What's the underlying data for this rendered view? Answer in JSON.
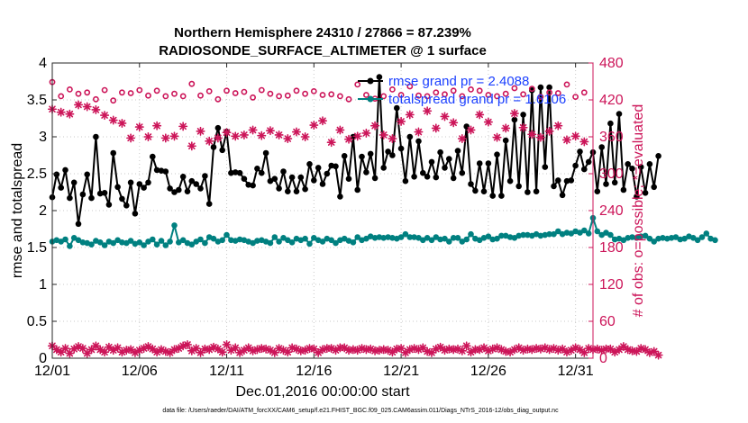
{
  "chart_data": {
    "type": "line",
    "title": "Northern Hemisphere 24310 / 27866 = 87.239%",
    "subtitle": "RADIOSONDE_SURFACE_ALTIMETER @ 1 surface",
    "xlabel": "Dec.01,2016 00:00:00 start",
    "ylabel": "rmse and totalspread",
    "ylabel_right": "# of obs: o=possible; *=evaluated",
    "footnote": "data file: /Users/raeder/DAI/ATM_forcXX/CAM6_setup/f.e21.FHIST_BGC.f09_025.CAM6assim.011/Diags_NTrS_2016-12/obs_diag_output.nc",
    "xlim": [
      0,
      31
    ],
    "ylim": [
      0,
      4
    ],
    "ylim_right": [
      0,
      480
    ],
    "xticks": [
      0,
      5,
      10,
      15,
      20,
      25,
      30
    ],
    "xtick_labels": [
      "12/01",
      "12/06",
      "12/11",
      "12/16",
      "12/21",
      "12/26",
      "12/31"
    ],
    "yticks": [
      0,
      0.5,
      1,
      1.5,
      2,
      2.5,
      3,
      3.5,
      4
    ],
    "ytick_labels": [
      "0",
      "0.5",
      "1",
      "1.5",
      "2",
      "2.5",
      "3",
      "3.5",
      "4"
    ],
    "yticks_right": [
      0,
      60,
      120,
      180,
      240,
      300,
      360,
      420,
      480
    ],
    "ytick_labels_right": [
      "0",
      "60",
      "120",
      "180",
      "240",
      "300",
      "360",
      "420",
      "480"
    ],
    "grid": true,
    "legend_position": "top-right",
    "colors": {
      "rmse": "#000000",
      "spread": "#008080",
      "obs": "#cc1559",
      "legend_text": "#1a3fff"
    },
    "series": [
      {
        "name": "rmse",
        "legend": "rmse grand pr = 2.4088",
        "axis": "left",
        "marker": "filled-circle",
        "t0": 0,
        "dt": 0.25,
        "values": [
          2.18,
          2.49,
          2.31,
          2.55,
          2.17,
          2.38,
          1.82,
          2.22,
          2.49,
          2.17,
          3.0,
          2.23,
          2.24,
          2.08,
          2.78,
          2.32,
          2.16,
          2.07,
          2.38,
          1.96,
          2.36,
          2.31,
          2.38,
          2.73,
          2.55,
          2.54,
          2.53,
          2.3,
          2.25,
          2.28,
          2.46,
          2.26,
          2.4,
          2.36,
          2.3,
          2.47,
          2.09,
          2.86,
          3.12,
          2.82,
          3.07,
          2.51,
          2.52,
          2.51,
          2.43,
          2.35,
          2.34,
          2.57,
          2.51,
          2.78,
          2.4,
          2.43,
          2.3,
          2.53,
          2.26,
          2.45,
          2.26,
          2.45,
          2.29,
          2.63,
          2.41,
          2.58,
          2.36,
          2.5,
          2.61,
          2.6,
          2.19,
          2.74,
          2.43,
          3.0,
          2.28,
          2.73,
          2.52,
          2.77,
          2.44,
          3.81,
          2.58,
          2.8,
          2.75,
          3.39,
          2.84,
          2.4,
          3.0,
          2.46,
          2.94,
          2.51,
          2.46,
          2.66,
          2.45,
          2.79,
          2.58,
          2.7,
          2.44,
          2.81,
          2.51,
          3.14,
          2.36,
          2.27,
          2.64,
          2.26,
          2.64,
          2.2,
          2.76,
          2.2,
          2.95,
          2.4,
          3.23,
          2.33,
          3.3,
          2.25,
          3.63,
          2.26,
          3.67,
          2.59,
          3.67,
          2.33,
          2.41,
          2.21,
          2.4,
          2.41,
          2.61,
          2.8,
          2.56,
          2.66,
          2.79,
          2.26,
          2.86,
          2.36,
          3.18,
          2.38,
          3.31,
          2.28,
          2.63,
          2.57,
          2.19,
          2.59,
          2.24,
          2.63,
          2.32,
          2.74
        ]
      },
      {
        "name": "totalspread",
        "legend": "totalspread grand pr = 1.6106",
        "axis": "left",
        "marker": "filled-circle",
        "t0": 0,
        "dt": 0.25,
        "values": [
          1.58,
          1.6,
          1.58,
          1.61,
          1.52,
          1.63,
          1.6,
          1.57,
          1.56,
          1.54,
          1.59,
          1.57,
          1.53,
          1.58,
          1.56,
          1.6,
          1.57,
          1.56,
          1.59,
          1.55,
          1.57,
          1.53,
          1.58,
          1.61,
          1.54,
          1.59,
          1.53,
          1.58,
          1.8,
          1.57,
          1.6,
          1.56,
          1.54,
          1.58,
          1.61,
          1.56,
          1.64,
          1.62,
          1.58,
          1.6,
          1.67,
          1.6,
          1.59,
          1.61,
          1.6,
          1.58,
          1.56,
          1.59,
          1.6,
          1.58,
          1.56,
          1.64,
          1.58,
          1.63,
          1.6,
          1.57,
          1.62,
          1.6,
          1.62,
          1.55,
          1.63,
          1.6,
          1.58,
          1.62,
          1.6,
          1.56,
          1.6,
          1.62,
          1.59,
          1.57,
          1.64,
          1.6,
          1.62,
          1.65,
          1.63,
          1.64,
          1.63,
          1.64,
          1.63,
          1.62,
          1.64,
          1.68,
          1.64,
          1.64,
          1.63,
          1.6,
          1.63,
          1.6,
          1.64,
          1.61,
          1.62,
          1.58,
          1.63,
          1.63,
          1.58,
          1.61,
          1.68,
          1.62,
          1.6,
          1.63,
          1.65,
          1.61,
          1.62,
          1.66,
          1.66,
          1.64,
          1.63,
          1.66,
          1.67,
          1.67,
          1.66,
          1.68,
          1.66,
          1.67,
          1.68,
          1.68,
          1.72,
          1.68,
          1.7,
          1.69,
          1.72,
          1.7,
          1.73,
          1.69,
          1.9,
          1.72,
          1.67,
          1.7,
          1.67,
          1.61,
          1.62,
          1.6,
          1.63,
          1.64,
          1.63,
          1.65,
          1.66,
          1.62,
          1.58,
          1.62,
          1.63,
          1.62,
          1.63,
          1.64,
          1.61,
          1.62,
          1.65,
          1.63,
          1.6,
          1.64,
          1.69,
          1.62,
          1.6
        ]
      },
      {
        "name": "obs_possible",
        "axis": "right",
        "marker": "open-circle",
        "t0": 0,
        "dt": 0.5,
        "values": [
          449,
          426,
          437,
          430,
          432,
          421,
          436,
          419,
          432,
          431,
          436,
          427,
          435,
          426,
          430,
          426,
          446,
          427,
          434,
          421,
          435,
          431,
          433,
          424,
          436,
          430,
          426,
          427,
          435,
          430,
          434,
          428,
          429,
          426,
          421,
          445,
          428,
          422,
          426,
          437,
          428,
          442,
          427,
          426,
          432,
          429,
          435,
          426,
          437,
          435,
          428,
          426,
          430,
          439,
          429,
          438,
          425,
          432,
          431,
          445,
          425,
          432
        ]
      },
      {
        "name": "obs_evaluated",
        "axis": "right",
        "marker": "asterisk",
        "t0": 0,
        "dt": 0.5,
        "values": [
          405,
          400,
          397,
          412,
          409,
          404,
          395,
          387,
          382,
          358,
          376,
          360,
          378,
          358,
          361,
          377,
          345,
          369,
          353,
          358,
          367,
          361,
          363,
          371,
          362,
          370,
          363,
          357,
          368,
          360,
          379,
          386,
          351,
          371,
          356,
          361,
          366,
          378,
          363,
          357,
          385,
          396,
          368,
          402,
          374,
          393,
          383,
          357,
          371,
          396,
          384,
          359,
          374,
          398,
          375,
          364,
          359,
          369,
          378,
          355,
          361,
          352
        ]
      },
      {
        "name": "obs_low",
        "axis": "right",
        "marker": "asterisk",
        "t0": 0,
        "dt": 0.25,
        "values": [
          20,
          14,
          10,
          16,
          8,
          15,
          19,
          16,
          8,
          14,
          20,
          14,
          10,
          18,
          13,
          17,
          10,
          13,
          14,
          9,
          13,
          16,
          19,
          15,
          10,
          14,
          11,
          9,
          14,
          16,
          20,
          22,
          12,
          16,
          9,
          15,
          14,
          18,
          15,
          10,
          22,
          13,
          17,
          9,
          13,
          17,
          12,
          14,
          16,
          15,
          13,
          9,
          16,
          13,
          10,
          17,
          15,
          12,
          13,
          16,
          15,
          9,
          14,
          16,
          16,
          13,
          17,
          17,
          13,
          14,
          13,
          16,
          14,
          15,
          12,
          13,
          14,
          13,
          10,
          15,
          16,
          9,
          14,
          16,
          14,
          17,
          11,
          9,
          15,
          18,
          13,
          15,
          14,
          15,
          12,
          20,
          10,
          14,
          14,
          17,
          12,
          15,
          17,
          14,
          11,
          10,
          14,
          17,
          13,
          15,
          14,
          16,
          15,
          17,
          14,
          16,
          13,
          15,
          10,
          13,
          17,
          14,
          9,
          16,
          14,
          15,
          13,
          15,
          15,
          10,
          14,
          19,
          14,
          12,
          11,
          16,
          14,
          9,
          11,
          5
        ]
      }
    ]
  }
}
